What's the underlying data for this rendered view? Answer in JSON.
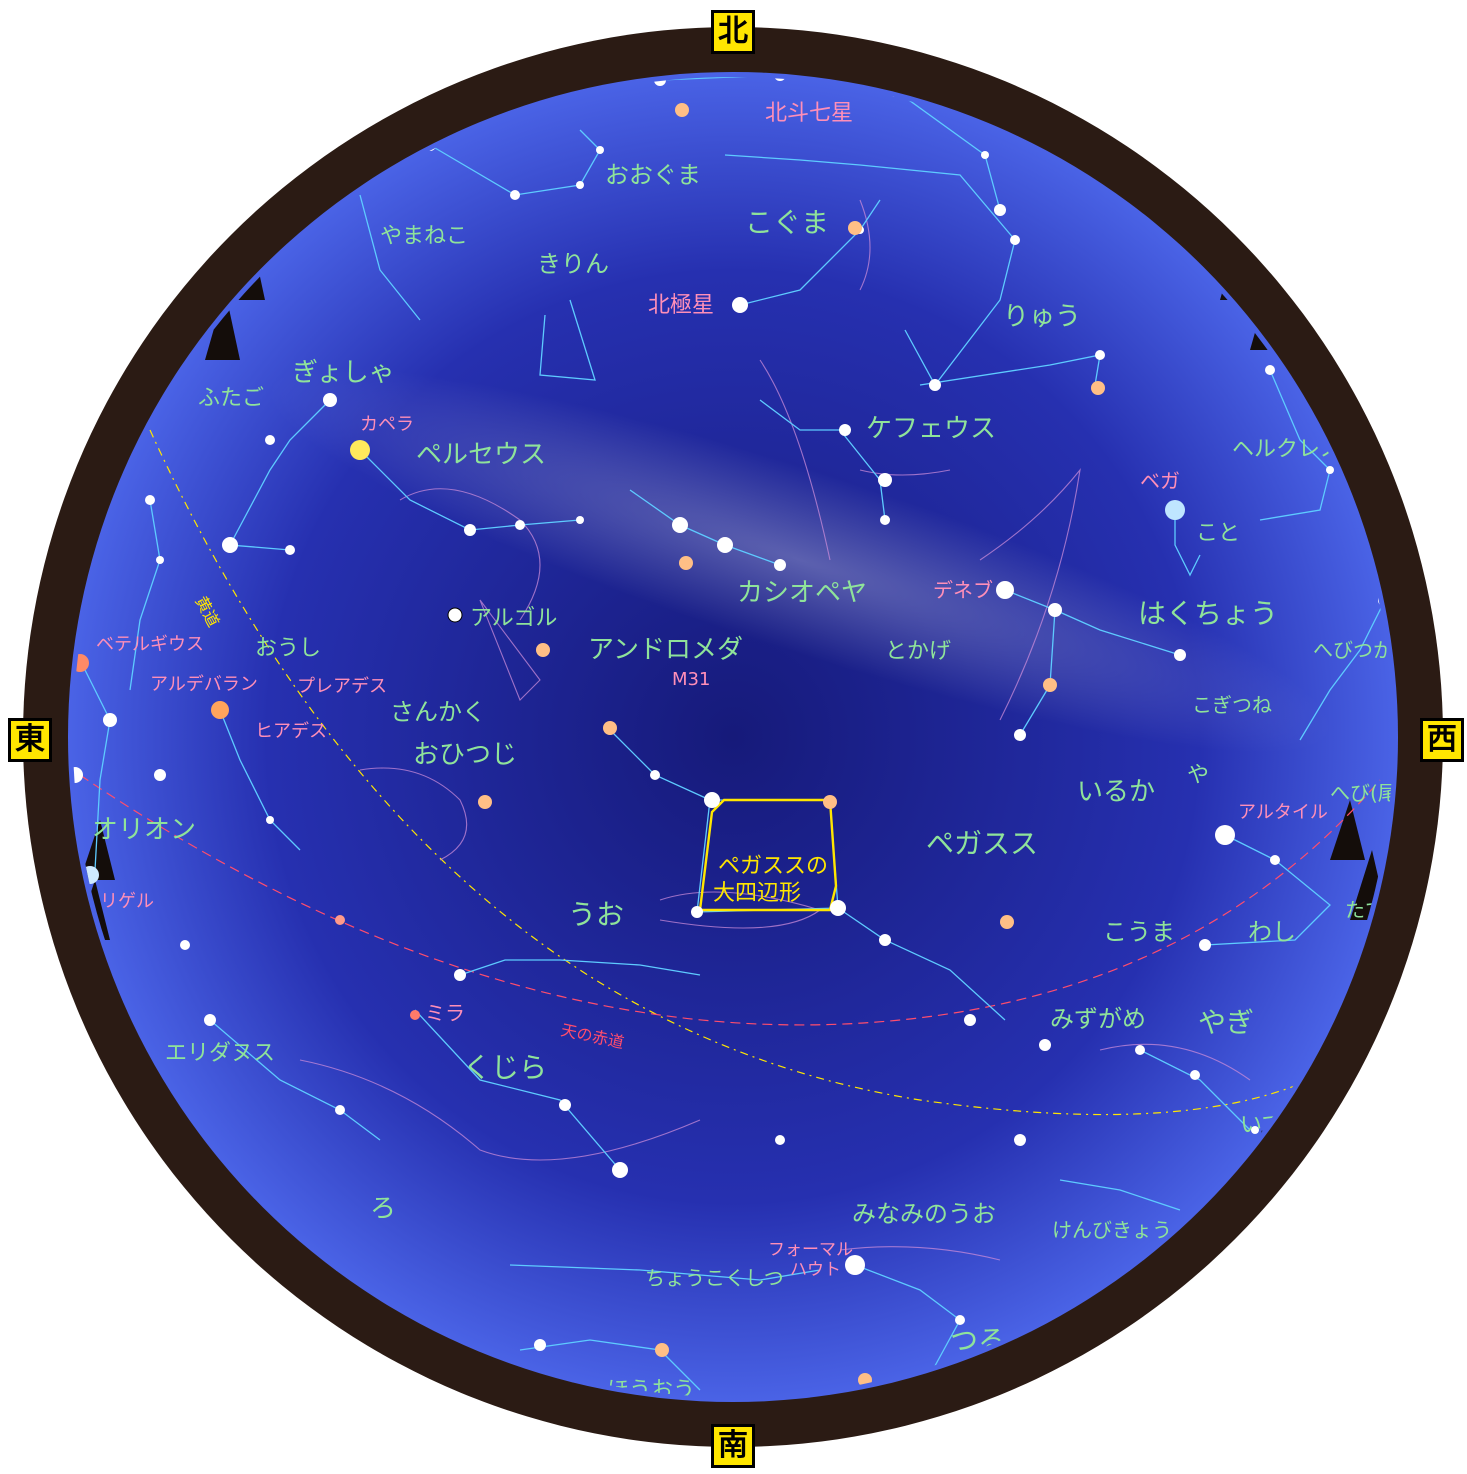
{
  "directions": {
    "north": "北",
    "south": "南",
    "east": "東",
    "west": "西"
  },
  "constellations": {
    "ursa_major": "おおぐま",
    "big_dipper": "北斗七星",
    "ursa_minor": "こぐま",
    "lynx": "やまねこ",
    "camelopardalis": "きりん",
    "polaris": "北極星",
    "draco": "りゅう",
    "gemini": "ふたご",
    "auriga": "ぎょしゃ",
    "capella": "カペラ",
    "perseus": "ペルセウス",
    "cepheus": "ケフェウス",
    "hercules": "ヘルクレス",
    "vega": "ベガ",
    "lyra": "こと",
    "algol": "アルゴル",
    "cassiopeia": "カシオペヤ",
    "deneb": "デネブ",
    "cygnus": "はくちょう",
    "betelgeuse": "ベテルギウス",
    "orion_auriga": "おうし",
    "pleiades": "プレアデス",
    "andromeda": "アンドロメダ",
    "lacerta": "とかげ",
    "ophiuchus": "へびつかい",
    "aldebaran": "アルデバラン",
    "m31": "M31",
    "triangulum": "さんかく",
    "hyades": "ヒアデス",
    "vulpecula": "こぎつね",
    "aries": "おひつじ",
    "delphinus": "いるか",
    "sagitta": "や",
    "serpens_cauda": "へび(尾)",
    "altair": "アルタイル",
    "orion": "オリオン",
    "pegasus": "ペガスス",
    "great_square": "ペガススの\n大四辺形",
    "great_square_line1": "ペガススの",
    "great_square_line2": "大四辺形",
    "rigel": "リゲル",
    "pisces": "うお",
    "equuleus": "こうま",
    "aquila": "わし",
    "scutum": "たて",
    "mira": "ミラ",
    "celestial_equator": "天の赤道",
    "ecliptic": "黄道",
    "eridanus": "エリダヌス",
    "aquarius": "みずがめ",
    "capricornus": "やぎ",
    "cetus": "くじら",
    "sagittarius": "いて",
    "fornax": "ろ",
    "piscis_austrinus": "みなみのうお",
    "microscopium": "けんびきょう",
    "fomalhaut_1": "フォーマル",
    "fomalhaut_2": "ハウト",
    "sculptor": "ちょうこくしつ",
    "grus": "つる",
    "phoenix": "ほうおう"
  },
  "colors": {
    "sky_center": "#1a1f8a",
    "sky_edge": "#3a4fd8",
    "horizon_ring": "#2b1b14",
    "label_green": "#8fe39a",
    "label_pink": "#ff8fb8",
    "constellation_line": "#5ecbff",
    "square_highlight": "#ffe600",
    "equator_line": "#ff4d6d",
    "ecliptic_line": "#ffe600"
  }
}
